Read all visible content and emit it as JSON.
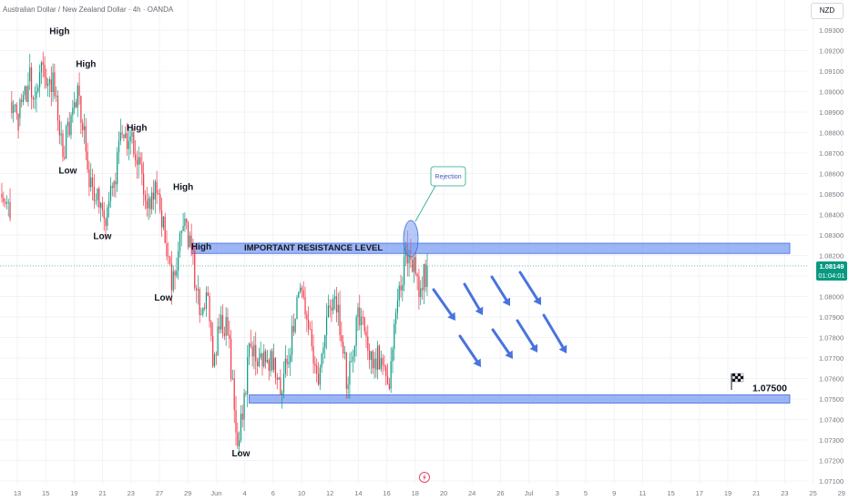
{
  "header": {
    "symbol_title": "Australian Dollar / New Zealand Dollar · 4h · OANDA",
    "currency": "NZD"
  },
  "current_price": {
    "price": "1.08149",
    "countdown": "01:04:01",
    "value": 1.08149,
    "color": "#089981"
  },
  "colors": {
    "up": "#089981",
    "down": "#f23645",
    "zone_fill": "#7b9cf0",
    "zone_border": "#3d6ae0",
    "arrow": "#4a72e0",
    "callout": "#22a98f",
    "grid": "#f2f3f5"
  },
  "chart_data": {
    "type": "candlestick",
    "title": "",
    "xlabel": "",
    "ylabel": "",
    "ylim": [
      1.0705,
      1.0942
    ],
    "grid": true,
    "y_ticks": [
      "1.09300",
      "1.09200",
      "1.09100",
      "1.09000",
      "1.08900",
      "1.08800",
      "1.08700",
      "1.08600",
      "1.08500",
      "1.08400",
      "1.08300",
      "1.08200",
      "1.08100",
      "1.08000",
      "1.07900",
      "1.07800",
      "1.07700",
      "1.07600",
      "1.07500",
      "1.07400",
      "1.07300",
      "1.07200",
      "1.07100"
    ],
    "x_ticks": [
      "13",
      "15",
      "19",
      "21",
      "23",
      "27",
      "29",
      "Jun",
      "4",
      "6",
      "10",
      "12",
      "14",
      "16",
      "18",
      "20",
      "24",
      "26",
      "Jul",
      "3",
      "5",
      "9",
      "11",
      "15",
      "17",
      "19",
      "21",
      "23",
      "25",
      "29"
    ],
    "ohlc_anchors": [
      [
        0,
        1.085,
        1.0838
      ],
      [
        6,
        1.0895,
        1.0881
      ],
      [
        11,
        1.0887,
        1.0903
      ],
      [
        17,
        1.0905,
        1.09
      ],
      [
        22,
        1.09,
        1.0913
      ],
      [
        26,
        1.0913,
        1.0906
      ],
      [
        30,
        1.0906,
        1.0898
      ],
      [
        34,
        1.0898,
        1.0868
      ],
      [
        38,
        1.0868,
        1.0892
      ],
      [
        44,
        1.0892,
        1.0898
      ],
      [
        48,
        1.0898,
        1.0862
      ],
      [
        53,
        1.0862,
        1.0847
      ],
      [
        58,
        1.0847,
        1.0838
      ],
      [
        63,
        1.0838,
        1.0853
      ],
      [
        68,
        1.0853,
        1.0879
      ],
      [
        74,
        1.0879,
        1.0878
      ],
      [
        79,
        1.0878,
        1.0868
      ],
      [
        84,
        1.0868,
        1.0843
      ],
      [
        89,
        1.0843,
        1.0856
      ],
      [
        94,
        1.0856,
        1.0826
      ],
      [
        100,
        1.0826,
        1.0803
      ],
      [
        104,
        1.0803,
        1.0822
      ],
      [
        108,
        1.0822,
        1.0838
      ],
      [
        112,
        1.0838,
        1.0825
      ],
      [
        116,
        1.0825,
        1.0791
      ],
      [
        121,
        1.0791,
        1.0802
      ],
      [
        125,
        1.0802,
        1.0766
      ],
      [
        129,
        1.0766,
        1.0784
      ],
      [
        133,
        1.0784,
        1.079
      ],
      [
        137,
        1.079,
        1.076
      ],
      [
        141,
        1.076,
        1.0727
      ],
      [
        144,
        1.0727,
        1.074
      ],
      [
        147,
        1.074,
        1.0777
      ],
      [
        151,
        1.0777,
        1.0766
      ],
      [
        156,
        1.0766,
        1.0768
      ],
      [
        161,
        1.0768,
        1.077
      ],
      [
        166,
        1.077,
        1.0752
      ],
      [
        170,
        1.0752,
        1.0767
      ],
      [
        174,
        1.0767,
        1.0789
      ],
      [
        179,
        1.0789,
        1.0803
      ],
      [
        183,
        1.0803,
        1.0784
      ],
      [
        188,
        1.0784,
        1.0757
      ],
      [
        193,
        1.0757,
        1.079
      ],
      [
        198,
        1.079,
        1.08
      ],
      [
        203,
        1.08,
        1.0778
      ],
      [
        207,
        1.0778,
        1.0757
      ],
      [
        211,
        1.0757,
        1.079
      ],
      [
        216,
        1.079,
        1.0783
      ],
      [
        221,
        1.0783,
        1.0765
      ],
      [
        226,
        1.0765,
        1.077
      ],
      [
        231,
        1.077,
        1.0755
      ],
      [
        236,
        1.0755,
        1.0792
      ],
      [
        240,
        1.0792,
        1.0803
      ],
      [
        243,
        1.0803,
        1.0826
      ],
      [
        246,
        1.0826,
        1.0818
      ],
      [
        249,
        1.0818,
        1.0811
      ],
      [
        252,
        1.0811,
        1.0804
      ],
      [
        255,
        1.0804,
        1.0815
      ]
    ],
    "ohlc_step_bars": 4,
    "zones": [
      {
        "name": "resistance",
        "label": "IMPORTANT RESISTANCE LEVEL",
        "from": 1.0821,
        "to": 1.0826,
        "x_start_bar": 115
      },
      {
        "name": "support",
        "label": "1.07500",
        "from": 1.0748,
        "to": 1.0752,
        "x_start_bar": 150
      }
    ],
    "annotations": [
      {
        "text": "High",
        "price": 1.0928,
        "bar": 35
      },
      {
        "text": "High",
        "price": 1.0912,
        "bar": 51
      },
      {
        "text": "High",
        "price": 1.0881,
        "bar": 82
      },
      {
        "text": "High",
        "price": 1.0852,
        "bar": 110
      },
      {
        "text": "High",
        "price": 1.0823,
        "bar": 121
      },
      {
        "text": "Low",
        "price": 1.086,
        "bar": 40
      },
      {
        "text": "Low",
        "price": 1.0828,
        "bar": 61
      },
      {
        "text": "Low",
        "price": 1.0798,
        "bar": 98
      },
      {
        "text": "Low",
        "price": 1.0722,
        "bar": 145
      }
    ],
    "callout": {
      "text": "Rejection"
    }
  }
}
